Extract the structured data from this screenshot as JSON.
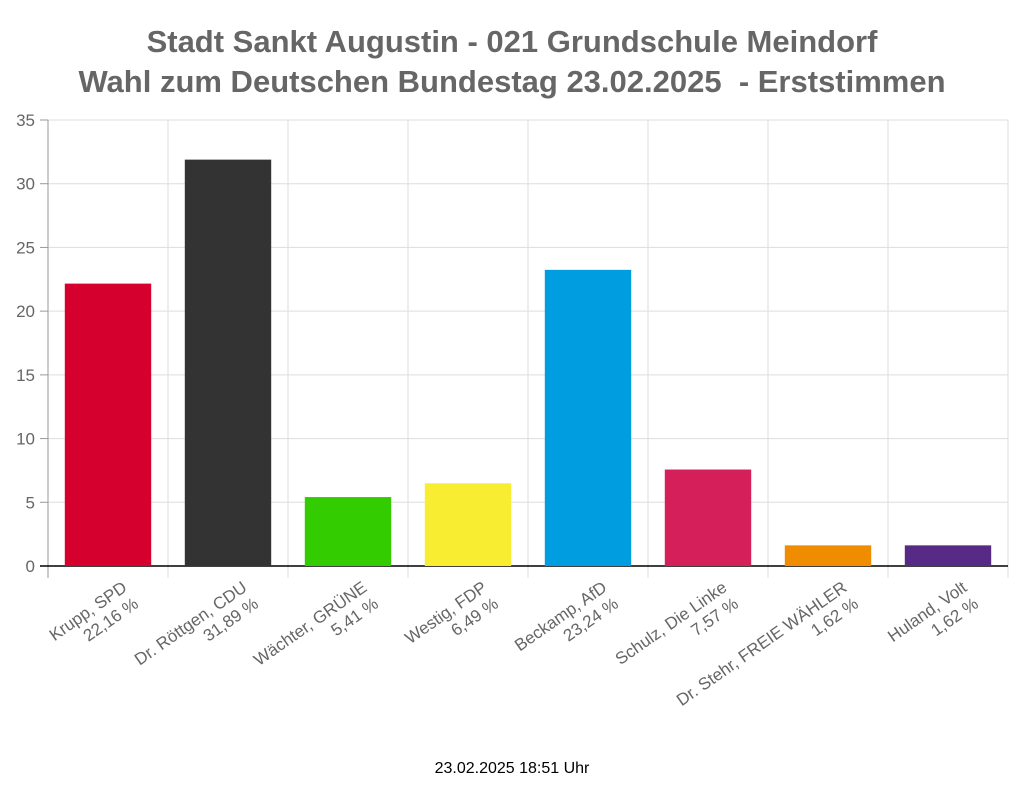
{
  "title": {
    "line1": "Stadt Sankt Augustin - 021 Grundschule Meindorf",
    "line2": "Wahl zum Deutschen Bundestag 23.02.2025  - Erststimmen"
  },
  "timestamp": "23.02.2025 18:51 Uhr",
  "chart_data": {
    "type": "bar",
    "title": "Stadt Sankt Augustin - 021 Grundschule Meindorf / Wahl zum Deutschen Bundestag 23.02.2025  - Erststimmen",
    "xlabel": "",
    "ylabel": "",
    "ylim": [
      0,
      35
    ],
    "yticks": [
      0,
      5,
      10,
      15,
      20,
      25,
      30,
      35
    ],
    "grid": true,
    "categories": [
      {
        "name": "Krupp, SPD",
        "pct": "22,16 %"
      },
      {
        "name": "Dr. Röttgen, CDU",
        "pct": "31,89 %"
      },
      {
        "name": "Wächter, GRÜNE",
        "pct": "5,41 %"
      },
      {
        "name": "Westig, FDP",
        "pct": "6,49 %"
      },
      {
        "name": "Beckamp, AfD",
        "pct": "23,24 %"
      },
      {
        "name": "Schulz, Die Linke",
        "pct": "7,57 %"
      },
      {
        "name": "Dr. Stehr, FREIE WÄHLER",
        "pct": "1,62 %"
      },
      {
        "name": "Huland, Volt",
        "pct": "1,62 %"
      }
    ],
    "values": [
      22.16,
      31.89,
      5.41,
      6.49,
      23.24,
      7.57,
      1.62,
      1.62
    ],
    "colors": [
      "#d5002d",
      "#333333",
      "#33cc00",
      "#f9ed32",
      "#009de0",
      "#d41f5a",
      "#f08c00",
      "#572b85"
    ]
  }
}
